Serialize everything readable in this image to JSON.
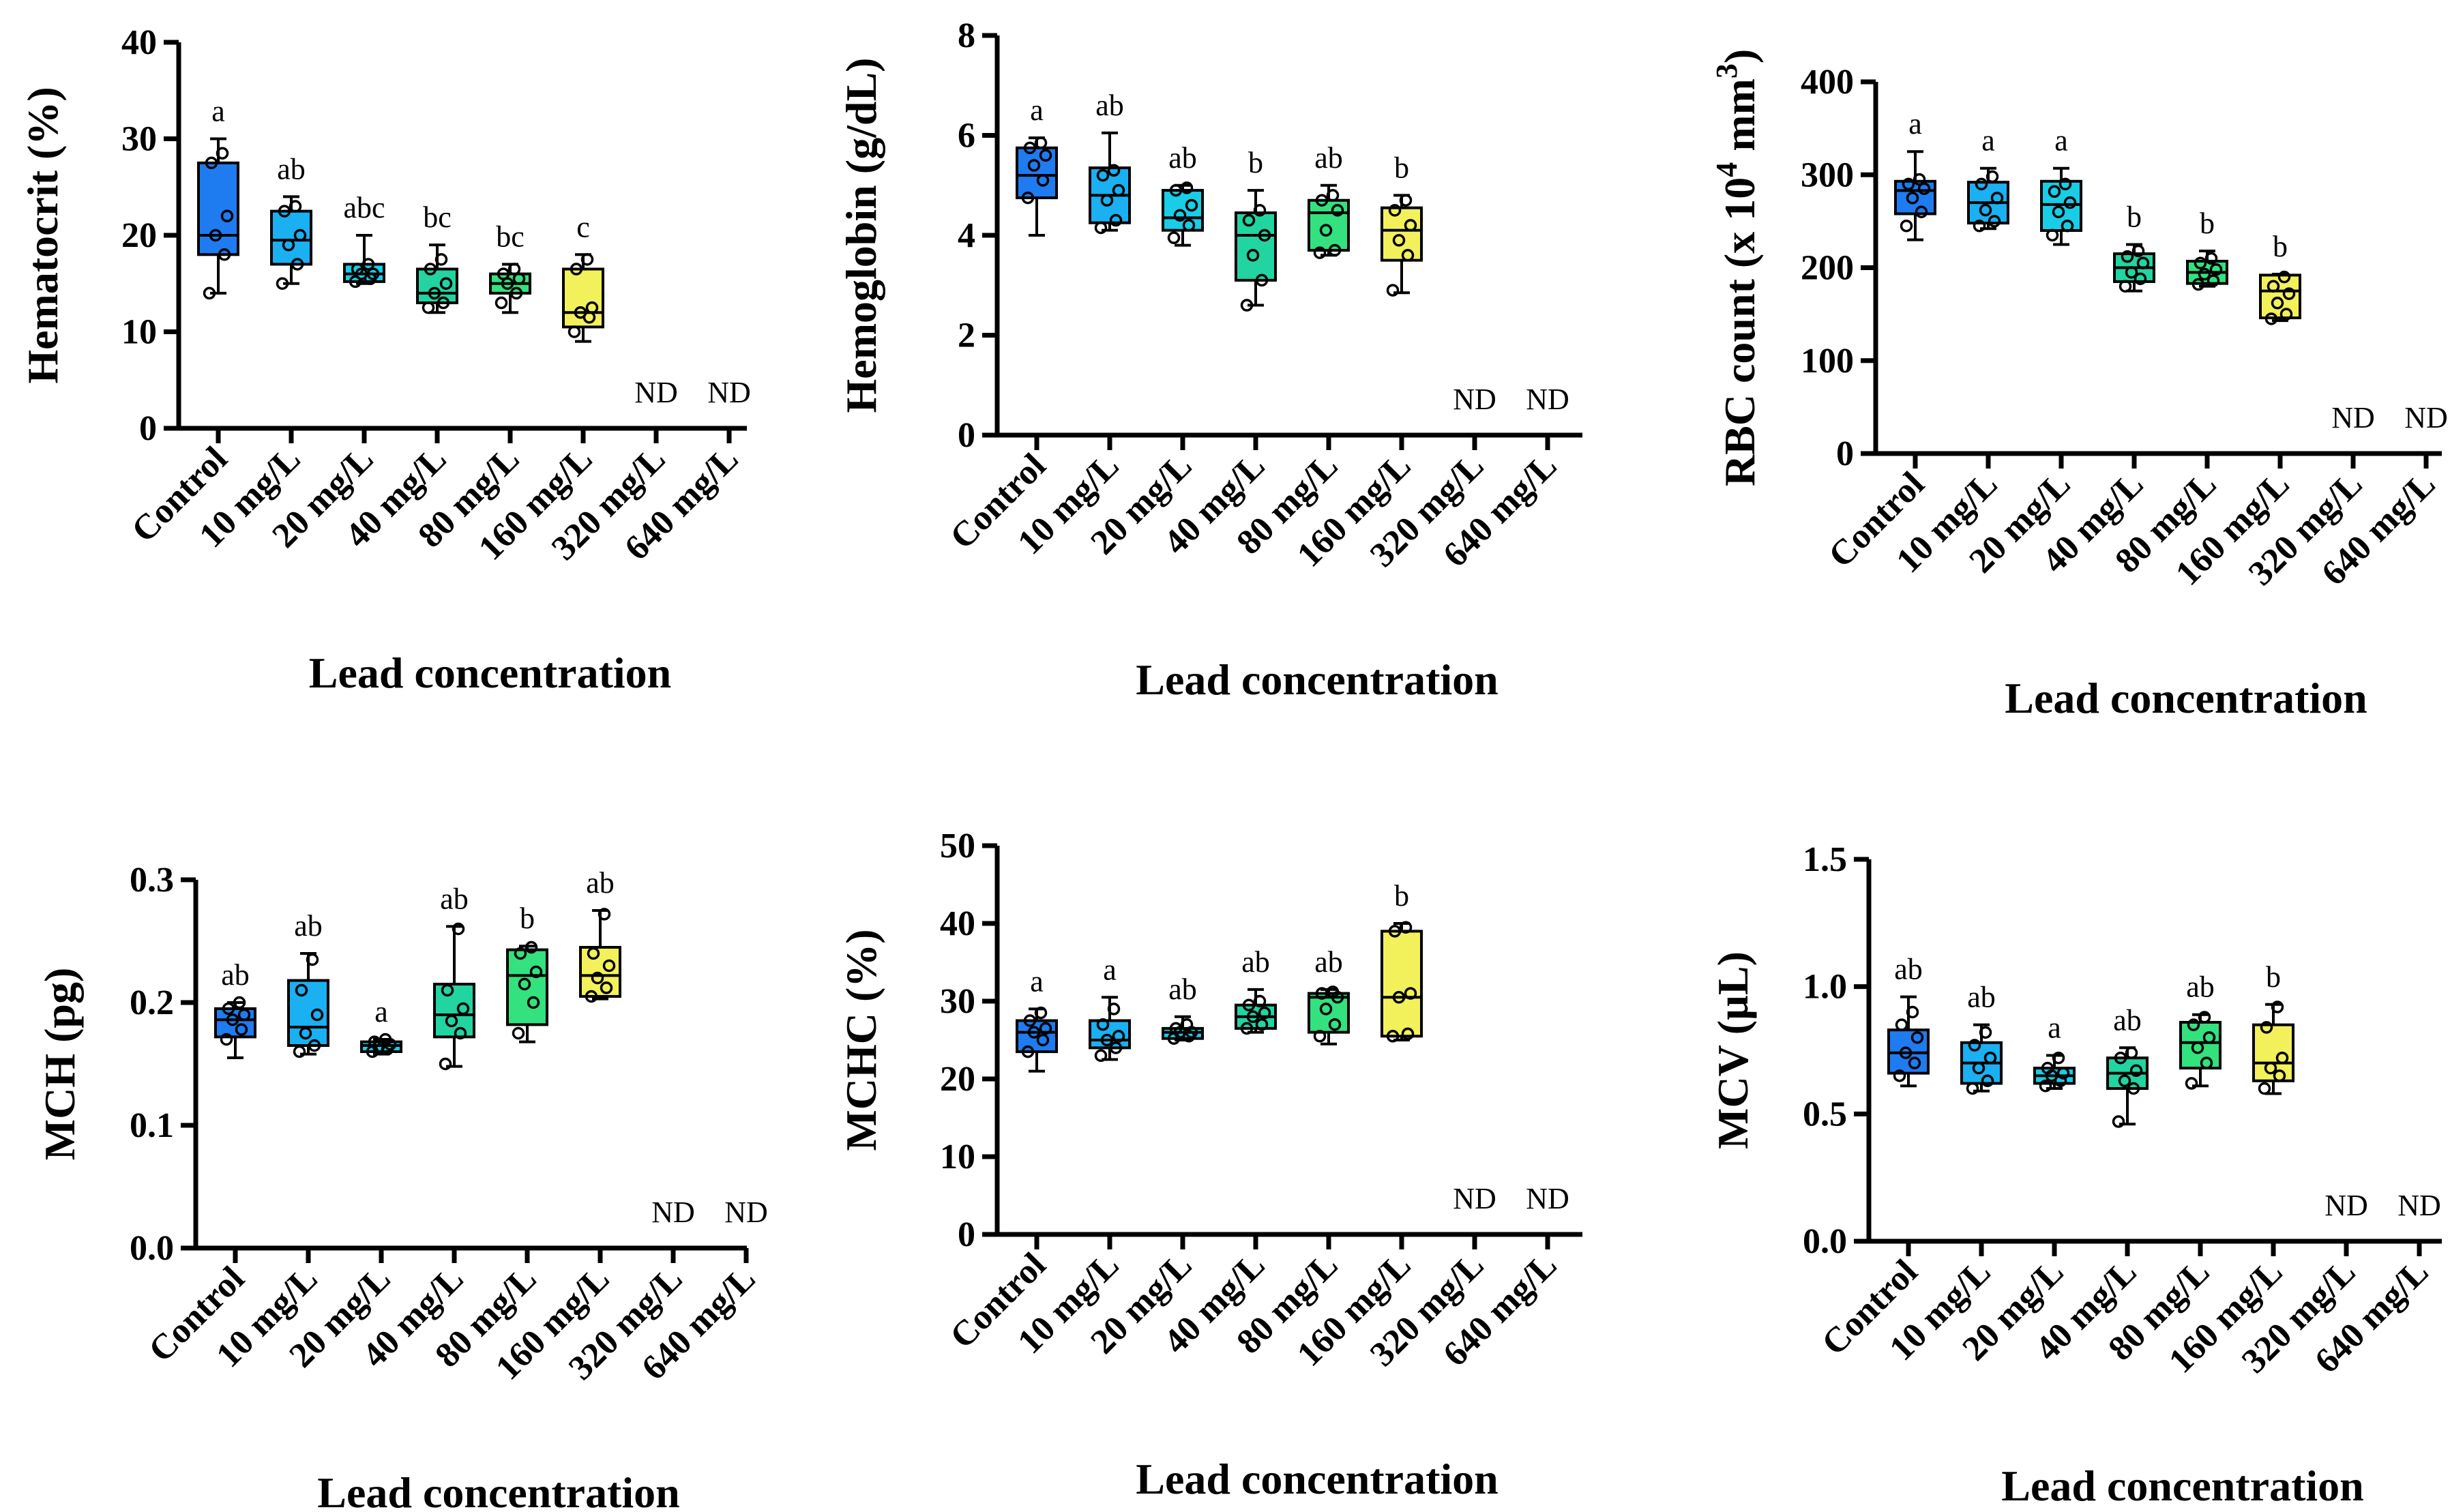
{
  "colors": {
    "palette": [
      "#1f7cf0",
      "#1ab0f2",
      "#19cde6",
      "#22d4a2",
      "#33e27e",
      "#f3f15b"
    ]
  },
  "nd_label": "ND",
  "chart_data": [
    {
      "type": "box",
      "ylabel": "Hematocrit (%)",
      "xlabel": "Lead concentration",
      "ylim": [
        0,
        40
      ],
      "yticks": [
        "0",
        "10",
        "20",
        "30",
        "40"
      ],
      "categories": [
        "Control",
        "10 mg/L",
        "20 mg/L",
        "40 mg/L",
        "80 mg/L",
        "160 mg/L",
        "320 mg/L",
        "640 mg/L"
      ],
      "boxes": [
        {
          "min": 14,
          "q1": 18,
          "median": 20,
          "q3": 27.5,
          "max": 30,
          "points": [
            14,
            18,
            20,
            22,
            27.5,
            28.5
          ],
          "sig": "a"
        },
        {
          "min": 15,
          "q1": 17,
          "median": 19.5,
          "q3": 22.5,
          "max": 24,
          "points": [
            15,
            17,
            19,
            20,
            22.5,
            23
          ],
          "sig": "ab"
        },
        {
          "min": 15,
          "q1": 15.2,
          "median": 16,
          "q3": 17,
          "max": 20,
          "points": [
            15.2,
            15.5,
            16,
            16,
            16.5,
            17
          ],
          "sig": "abc"
        },
        {
          "min": 12,
          "q1": 13,
          "median": 14,
          "q3": 16.5,
          "max": 19,
          "points": [
            12.5,
            13,
            14,
            15,
            16.5,
            17.5
          ],
          "sig": "bc"
        },
        {
          "min": 12,
          "q1": 14,
          "median": 15,
          "q3": 16,
          "max": 17,
          "points": [
            13,
            14,
            15,
            15.5,
            16,
            16.5
          ],
          "sig": "bc"
        },
        {
          "min": 9,
          "q1": 10.5,
          "median": 12,
          "q3": 16.5,
          "max": 18,
          "points": [
            10,
            11.5,
            12,
            12.5,
            16.5,
            17.5
          ],
          "sig": "c"
        },
        null,
        null
      ],
      "nd_categories": [
        "320 mg/L",
        "640 mg/L"
      ]
    },
    {
      "type": "box",
      "ylabel": "Hemoglobin (g/dL)",
      "xlabel": "Lead concentration",
      "ylim": [
        0,
        8
      ],
      "yticks": [
        "0",
        "2",
        "4",
        "6",
        "8"
      ],
      "categories": [
        "Control",
        "10 mg/L",
        "20 mg/L",
        "40 mg/L",
        "80 mg/L",
        "160 mg/L",
        "320 mg/L",
        "640 mg/L"
      ],
      "boxes": [
        {
          "min": 4.0,
          "q1": 4.75,
          "median": 5.2,
          "q3": 5.75,
          "max": 5.95,
          "points": [
            4.75,
            5.1,
            5.4,
            5.6,
            5.75,
            5.85
          ],
          "sig": "a"
        },
        {
          "min": 4.1,
          "q1": 4.25,
          "median": 4.8,
          "q3": 5.35,
          "max": 6.05,
          "points": [
            4.15,
            4.3,
            4.7,
            4.9,
            5.2,
            5.3
          ],
          "sig": "ab"
        },
        {
          "min": 3.8,
          "q1": 4.1,
          "median": 4.35,
          "q3": 4.9,
          "max": 5.0,
          "points": [
            3.95,
            4.2,
            4.4,
            4.6,
            4.9,
            4.95
          ],
          "sig": "ab"
        },
        {
          "min": 2.6,
          "q1": 3.1,
          "median": 4.0,
          "q3": 4.45,
          "max": 4.9,
          "points": [
            2.6,
            3.1,
            3.6,
            4.0,
            4.3,
            4.5
          ],
          "sig": "b"
        },
        {
          "min": 3.6,
          "q1": 3.7,
          "median": 4.45,
          "q3": 4.7,
          "max": 5.0,
          "points": [
            3.65,
            3.7,
            4.1,
            4.5,
            4.7,
            4.8
          ],
          "sig": "ab"
        },
        {
          "min": 2.85,
          "q1": 3.5,
          "median": 4.1,
          "q3": 4.55,
          "max": 4.8,
          "points": [
            2.9,
            3.6,
            3.9,
            4.2,
            4.5,
            4.7
          ],
          "sig": "b"
        },
        null,
        null
      ],
      "nd_categories": [
        "320 mg/L",
        "640 mg/L"
      ]
    },
    {
      "type": "box",
      "ylabel": "RBC count (x 10",
      "ylabel_sup": "4",
      "ylabel_unit": " mm",
      "ylabel_sup2": "3",
      "ylabel_end": ")",
      "xlabel": "Lead concentration",
      "ylim": [
        0,
        400
      ],
      "yticks": [
        "0",
        "100",
        "200",
        "300",
        "400"
      ],
      "categories": [
        "Control",
        "10 mg/L",
        "20 mg/L",
        "40 mg/L",
        "80 mg/L",
        "160 mg/L",
        "320 mg/L",
        "640 mg/L"
      ],
      "boxes": [
        {
          "min": 230,
          "q1": 258,
          "median": 283,
          "q3": 293,
          "max": 325,
          "points": [
            245,
            260,
            275,
            285,
            290,
            295
          ],
          "sig": "a"
        },
        {
          "min": 242,
          "q1": 248,
          "median": 270,
          "q3": 292,
          "max": 307,
          "points": [
            245,
            250,
            262,
            275,
            290,
            298
          ],
          "sig": "a"
        },
        {
          "min": 225,
          "q1": 240,
          "median": 268,
          "q3": 293,
          "max": 307,
          "points": [
            235,
            245,
            260,
            270,
            282,
            290
          ],
          "sig": "a"
        },
        {
          "min": 175,
          "q1": 185,
          "median": 200,
          "q3": 215,
          "max": 225,
          "points": [
            180,
            188,
            195,
            205,
            212,
            218
          ],
          "sig": "b"
        },
        {
          "min": 180,
          "q1": 183,
          "median": 195,
          "q3": 207,
          "max": 218,
          "points": [
            182,
            186,
            193,
            198,
            205,
            210
          ],
          "sig": "b"
        },
        {
          "min": 143,
          "q1": 146,
          "median": 175,
          "q3": 192,
          "max": 193,
          "points": [
            145,
            150,
            162,
            172,
            180,
            190
          ],
          "sig": "b"
        },
        null,
        null
      ],
      "nd_categories": [
        "320 mg/L",
        "640 mg/L"
      ]
    },
    {
      "type": "box",
      "ylabel": "MCH (pg)",
      "xlabel": "Lead concentration",
      "ylim": [
        0,
        0.3
      ],
      "yticks": [
        "0.0",
        "0.1",
        "0.2",
        "0.3"
      ],
      "categories": [
        "Control",
        "10 mg/L",
        "20 mg/L",
        "40 mg/L",
        "80 mg/L",
        "160 mg/L",
        "320 mg/L",
        "640 mg/L"
      ],
      "boxes": [
        {
          "min": 0.155,
          "q1": 0.172,
          "median": 0.186,
          "q3": 0.195,
          "max": 0.2,
          "points": [
            0.17,
            0.178,
            0.186,
            0.19,
            0.195,
            0.2
          ],
          "sig": "ab"
        },
        {
          "min": 0.158,
          "q1": 0.165,
          "median": 0.18,
          "q3": 0.218,
          "max": 0.24,
          "points": [
            0.16,
            0.165,
            0.175,
            0.19,
            0.21,
            0.235
          ],
          "sig": "ab"
        },
        {
          "min": 0.158,
          "q1": 0.16,
          "median": 0.165,
          "q3": 0.168,
          "max": 0.17,
          "points": [
            0.16,
            0.162,
            0.164,
            0.166,
            0.168,
            0.17
          ],
          "sig": "a"
        },
        {
          "min": 0.148,
          "q1": 0.172,
          "median": 0.19,
          "q3": 0.215,
          "max": 0.262,
          "points": [
            0.15,
            0.175,
            0.185,
            0.195,
            0.21,
            0.26
          ],
          "sig": "ab"
        },
        {
          "min": 0.168,
          "q1": 0.182,
          "median": 0.222,
          "q3": 0.243,
          "max": 0.246,
          "points": [
            0.175,
            0.2,
            0.215,
            0.225,
            0.24,
            0.245
          ],
          "sig": "b"
        },
        {
          "min": 0.203,
          "q1": 0.205,
          "median": 0.222,
          "q3": 0.245,
          "max": 0.275,
          "points": [
            0.205,
            0.212,
            0.22,
            0.23,
            0.24,
            0.272
          ],
          "sig": "ab"
        },
        null,
        null
      ],
      "nd_categories": [
        "320 mg/L",
        "640 mg/L"
      ]
    },
    {
      "type": "box",
      "ylabel": "MCHC (%)",
      "xlabel": "Lead concentration",
      "ylim": [
        0,
        50
      ],
      "yticks": [
        "0",
        "10",
        "20",
        "30",
        "40",
        "50"
      ],
      "categories": [
        "Control",
        "10 mg/L",
        "20 mg/L",
        "40 mg/L",
        "80 mg/L",
        "160 mg/L",
        "320 mg/L",
        "640 mg/L"
      ],
      "boxes": [
        {
          "min": 21,
          "q1": 23.5,
          "median": 26,
          "q3": 27.5,
          "max": 29,
          "points": [
            23.5,
            25,
            26,
            26.5,
            27.5,
            28.5
          ],
          "sig": "a"
        },
        {
          "min": 22.5,
          "q1": 24,
          "median": 25,
          "q3": 27.5,
          "max": 30.5,
          "points": [
            23,
            24,
            25,
            25.5,
            27,
            29
          ],
          "sig": "a"
        },
        {
          "min": 25,
          "q1": 25.2,
          "median": 26,
          "q3": 26.5,
          "max": 28,
          "points": [
            25.2,
            25.5,
            26,
            26,
            26.5,
            27
          ],
          "sig": "ab"
        },
        {
          "min": 26,
          "q1": 26.5,
          "median": 28,
          "q3": 29.5,
          "max": 31.5,
          "points": [
            26.5,
            27,
            28,
            28.5,
            29.5,
            30
          ],
          "sig": "ab"
        },
        {
          "min": 24.5,
          "q1": 26,
          "median": 30.5,
          "q3": 31,
          "max": 31.5,
          "points": [
            25.5,
            27,
            29,
            30.5,
            31,
            31.2
          ],
          "sig": "ab"
        },
        {
          "min": 25,
          "q1": 25.5,
          "median": 30.5,
          "q3": 39,
          "max": 40,
          "points": [
            25.5,
            25.8,
            30.5,
            31,
            39,
            39.5
          ],
          "sig": "b"
        },
        null,
        null
      ],
      "nd_categories": [
        "320 mg/L",
        "640 mg/L"
      ]
    },
    {
      "type": "box",
      "ylabel": "MCV (µL)",
      "xlabel": "Lead concentration",
      "ylim": [
        0,
        1.5
      ],
      "yticks": [
        "0.0",
        "0.5",
        "1.0",
        "1.5"
      ],
      "categories": [
        "Control",
        "10 mg/L",
        "20 mg/L",
        "40 mg/L",
        "80 mg/L",
        "160 mg/L",
        "320 mg/L",
        "640 mg/L"
      ],
      "boxes": [
        {
          "min": 0.61,
          "q1": 0.66,
          "median": 0.74,
          "q3": 0.83,
          "max": 0.96,
          "points": [
            0.65,
            0.7,
            0.74,
            0.8,
            0.85,
            0.9
          ],
          "sig": "ab"
        },
        {
          "min": 0.59,
          "q1": 0.62,
          "median": 0.7,
          "q3": 0.78,
          "max": 0.85,
          "points": [
            0.6,
            0.63,
            0.68,
            0.72,
            0.77,
            0.82
          ],
          "sig": "ab"
        },
        {
          "min": 0.6,
          "q1": 0.62,
          "median": 0.65,
          "q3": 0.68,
          "max": 0.73,
          "points": [
            0.61,
            0.63,
            0.65,
            0.66,
            0.68,
            0.72
          ],
          "sig": "a"
        },
        {
          "min": 0.46,
          "q1": 0.6,
          "median": 0.66,
          "q3": 0.72,
          "max": 0.76,
          "points": [
            0.47,
            0.6,
            0.63,
            0.67,
            0.72,
            0.74
          ],
          "sig": "ab"
        },
        {
          "min": 0.61,
          "q1": 0.68,
          "median": 0.78,
          "q3": 0.86,
          "max": 0.89,
          "points": [
            0.62,
            0.7,
            0.76,
            0.8,
            0.85,
            0.88
          ],
          "sig": "ab"
        },
        {
          "min": 0.58,
          "q1": 0.63,
          "median": 0.7,
          "q3": 0.85,
          "max": 0.93,
          "points": [
            0.6,
            0.65,
            0.68,
            0.72,
            0.84,
            0.92
          ],
          "sig": "b"
        },
        null,
        null
      ],
      "nd_categories": [
        "320 mg/L",
        "640 mg/L"
      ]
    }
  ]
}
